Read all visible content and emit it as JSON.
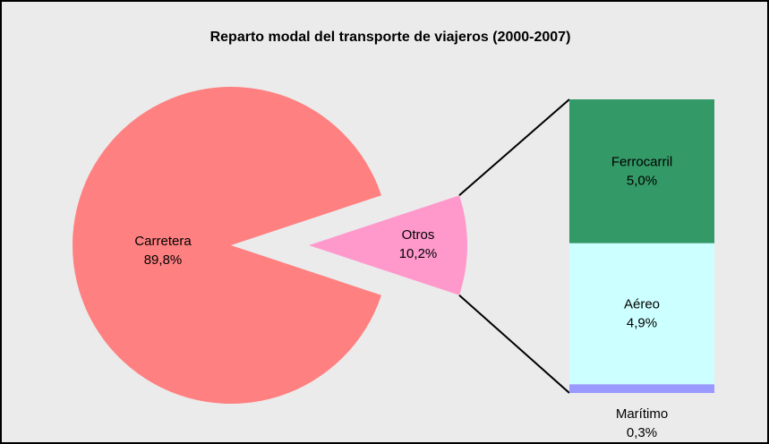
{
  "chart_data": {
    "type": "pie-of-bar",
    "title": "Reparto modal del transporte de viajeros (2000-2007)",
    "categories": [
      "Carretera",
      "Otros"
    ],
    "values": [
      89.8,
      10.2
    ],
    "value_labels": [
      "89,8%",
      "10,2%"
    ],
    "colors": [
      "#ff8080",
      "#ff99cc"
    ],
    "breakdown": {
      "categories": [
        "Ferrocarril",
        "Aéreo",
        "Marítimo"
      ],
      "values": [
        5.0,
        4.9,
        0.3
      ],
      "value_labels": [
        "5,0%",
        "4,9%",
        "0,3%"
      ],
      "colors": [
        "#339966",
        "#ccffff",
        "#9999ff"
      ]
    }
  }
}
